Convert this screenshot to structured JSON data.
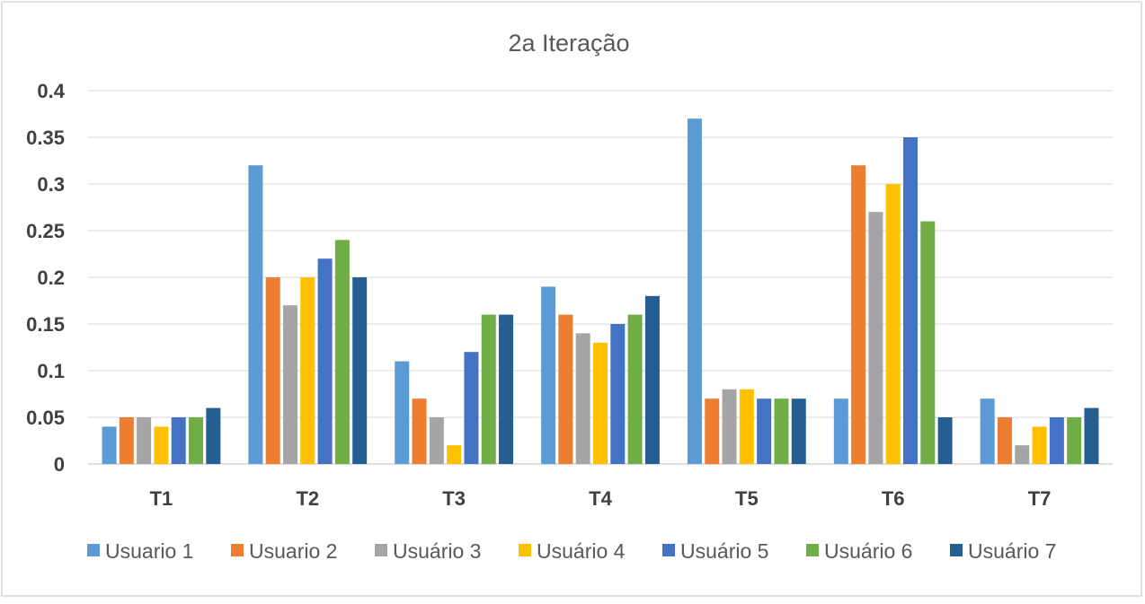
{
  "chart_data": {
    "type": "bar",
    "title": "2a Iteração",
    "xlabel": "",
    "ylabel": "",
    "categories": [
      "T1",
      "T2",
      "T3",
      "T4",
      "T5",
      "T6",
      "T7"
    ],
    "yticks": [
      "0",
      "0.05",
      "0.1",
      "0.15",
      "0.2",
      "0.25",
      "0.3",
      "0.35",
      "0.4"
    ],
    "ylim": [
      0,
      0.4
    ],
    "grid": true,
    "legend_position": "bottom",
    "series": [
      {
        "name": "Usuario 1",
        "color": "#5B9BD5",
        "values": [
          0.04,
          0.32,
          0.11,
          0.19,
          0.37,
          0.07,
          0.07
        ]
      },
      {
        "name": "Usuario 2",
        "color": "#ED7D31",
        "values": [
          0.05,
          0.2,
          0.07,
          0.16,
          0.07,
          0.32,
          0.05
        ]
      },
      {
        "name": "Usuário 3",
        "color": "#A5A5A5",
        "values": [
          0.05,
          0.17,
          0.05,
          0.14,
          0.08,
          0.27,
          0.02
        ]
      },
      {
        "name": "Usuário 4",
        "color": "#FFC000",
        "values": [
          0.04,
          0.2,
          0.02,
          0.13,
          0.08,
          0.3,
          0.04
        ]
      },
      {
        "name": "Usuário 5",
        "color": "#4472C4",
        "values": [
          0.05,
          0.22,
          0.12,
          0.15,
          0.07,
          0.35,
          0.05
        ]
      },
      {
        "name": "Usuário 6",
        "color": "#70AD47",
        "values": [
          0.05,
          0.24,
          0.16,
          0.16,
          0.07,
          0.26,
          0.05
        ]
      },
      {
        "name": "Usuário 7",
        "color": "#255E91",
        "values": [
          0.06,
          0.2,
          0.16,
          0.18,
          0.07,
          0.05,
          0.06
        ]
      }
    ]
  }
}
